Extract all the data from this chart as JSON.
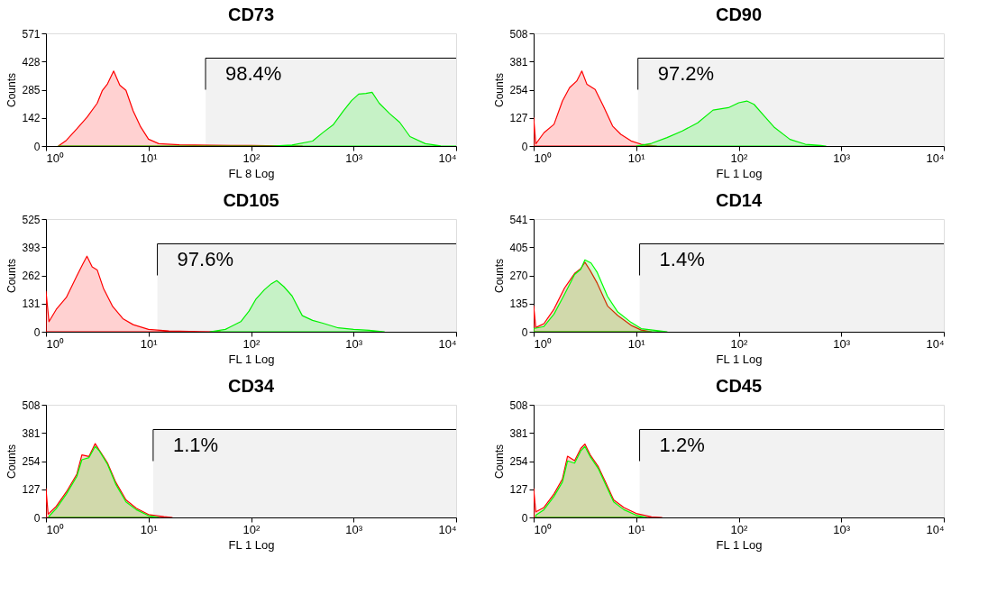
{
  "chart_data": [
    {
      "type": "area",
      "title": "CD73",
      "xlabel": "FL 8 Log",
      "ylabel": "Counts",
      "log": "x",
      "grid": false,
      "marker": "none",
      "xlim": [
        1,
        10000
      ],
      "xticks": [
        {
          "value": 1,
          "label": "10⁰"
        },
        {
          "value": 10,
          "label": "10¹"
        },
        {
          "value": 100,
          "label": "10²"
        },
        {
          "value": 1000,
          "label": "10³"
        },
        {
          "value": 10000,
          "label": "10⁴"
        }
      ],
      "ylim": [
        0,
        571
      ],
      "yticks": [
        0,
        142,
        285,
        428,
        571
      ],
      "bands": [
        {
          "axis": "x",
          "from": 36,
          "to": 10000,
          "label": "98.4%"
        }
      ],
      "series": [
        {
          "color": "#ff0000",
          "x": [
            1.32,
            1.58,
            2.0,
            2.51,
            3.16,
            3.55,
            3.98,
            4.57,
            5.25,
            6.03,
            7.08,
            8.32,
            10,
            12.6,
            20,
            39.8,
            100,
            200,
            316
          ],
          "values": [
            0,
            29,
            87,
            146,
            217,
            282,
            315,
            380,
            308,
            282,
            178,
            100,
            35,
            12,
            6,
            4,
            3,
            1,
            0
          ]
        },
        {
          "color": "#00ff00",
          "x": [
            1.32,
            158,
            251,
            398,
            501,
            631,
            794,
            955,
            1122,
            1318,
            1514,
            1778,
            2239,
            2818,
            3548,
            5012,
            7079,
            10000
          ],
          "values": [
            0,
            0,
            5,
            25,
            68,
            107,
            178,
            230,
            263,
            267,
            272,
            217,
            165,
            120,
            48,
            12,
            1,
            0
          ]
        }
      ]
    },
    {
      "type": "area",
      "title": "CD90",
      "xlabel": "FL 1 Log",
      "ylabel": "Counts",
      "log": "x",
      "grid": false,
      "marker": "none",
      "xlim": [
        1,
        10000
      ],
      "xticks": [
        {
          "value": 1,
          "label": "10⁰"
        },
        {
          "value": 10,
          "label": "10¹"
        },
        {
          "value": 100,
          "label": "10²"
        },
        {
          "value": 1000,
          "label": "10³"
        },
        {
          "value": 10000,
          "label": "10⁴"
        }
      ],
      "ylim": [
        0,
        508
      ],
      "yticks": [
        0,
        127,
        254,
        381,
        508
      ],
      "bands": [
        {
          "axis": "x",
          "from": 10.4,
          "to": 10000,
          "label": "97.2%"
        }
      ],
      "series": [
        {
          "color": "#ff0000",
          "x": [
            1,
            1.05,
            1.26,
            1.58,
            1.91,
            2.24,
            2.63,
            2.95,
            3.31,
            3.98,
            4.79,
            5.89,
            7.08,
            8.91,
            11.2,
            15.8
          ],
          "values": [
            128,
            10,
            60,
            98,
            203,
            263,
            293,
            338,
            278,
            255,
            180,
            90,
            53,
            23,
            8,
            0
          ]
        },
        {
          "color": "#00ff00",
          "x": [
            10,
            14.1,
            20,
            28.2,
            39.8,
            56.2,
            79.4,
            100,
            120,
            141,
            178,
            224,
            316,
            447,
            631,
            708
          ],
          "values": [
            0,
            12,
            38,
            68,
            105,
            162,
            173,
            195,
            203,
            188,
            135,
            83,
            30,
            8,
            3,
            0
          ]
        }
      ]
    },
    {
      "type": "area",
      "title": "CD105",
      "xlabel": "FL 1 Log",
      "ylabel": "Counts",
      "log": "x",
      "grid": false,
      "marker": "none",
      "xlim": [
        1,
        10000
      ],
      "xticks": [
        {
          "value": 1,
          "label": "10⁰"
        },
        {
          "value": 10,
          "label": "10¹"
        },
        {
          "value": 100,
          "label": "10²"
        },
        {
          "value": 1000,
          "label": "10³"
        },
        {
          "value": 10000,
          "label": "10⁴"
        }
      ],
      "ylim": [
        0,
        525
      ],
      "yticks": [
        0,
        131,
        262,
        393,
        525
      ],
      "bands": [
        {
          "axis": "x",
          "from": 12.2,
          "to": 10000,
          "label": "97.6%"
        }
      ],
      "series": [
        {
          "color": "#ff0000",
          "x": [
            1,
            1.07,
            1.26,
            1.58,
            2.0,
            2.29,
            2.51,
            2.82,
            3.16,
            3.63,
            4.47,
            5.62,
            7.08,
            10,
            15.8,
            31.6,
            50.1
          ],
          "values": [
            189,
            47,
            104,
            160,
            260,
            316,
            352,
            302,
            288,
            203,
            118,
            61,
            33,
            11,
            4,
            1,
            0
          ]
        },
        {
          "color": "#00ff00",
          "x": [
            39.8,
            56.2,
            79.4,
            95.5,
            112,
            135,
            158,
            178,
            209,
            251,
            316,
            398,
            501,
            708,
            1000,
            1413,
            1995
          ],
          "values": [
            0,
            11,
            47,
            96,
            153,
            196,
            224,
            238,
            210,
            167,
            75,
            53,
            40,
            18,
            11,
            7,
            0
          ]
        }
      ]
    },
    {
      "type": "area",
      "title": "CD14",
      "xlabel": "FL 1 Log",
      "ylabel": "Counts",
      "log": "x",
      "grid": false,
      "marker": "none",
      "xlim": [
        1,
        10000
      ],
      "xticks": [
        {
          "value": 1,
          "label": "10⁰"
        },
        {
          "value": 10,
          "label": "10¹"
        },
        {
          "value": 100,
          "label": "10²"
        },
        {
          "value": 1000,
          "label": "10³"
        },
        {
          "value": 10000,
          "label": "10⁴"
        }
      ],
      "ylim": [
        0,
        541
      ],
      "yticks": [
        0,
        135,
        270,
        405,
        541
      ],
      "bands": [
        {
          "axis": "x",
          "from": 10.8,
          "to": 10000,
          "label": "1.4%"
        }
      ],
      "series": [
        {
          "color": "#ff0000",
          "x": [
            1,
            1.05,
            1.26,
            1.58,
            2.0,
            2.51,
            2.88,
            3.16,
            3.55,
            4.17,
            5.25,
            6.61,
            8.91,
            11.2,
            14.1
          ],
          "values": [
            124,
            20,
            39,
            109,
            210,
            280,
            303,
            334,
            295,
            233,
            124,
            78,
            31,
            8,
            0
          ]
        },
        {
          "color": "#00ff00",
          "x": [
            1,
            1.26,
            1.58,
            2.0,
            2.51,
            2.88,
            3.16,
            3.63,
            4.17,
            5.25,
            6.61,
            8.91,
            11.2,
            17.8,
            20
          ],
          "values": [
            15,
            25,
            85,
            180,
            275,
            300,
            345,
            330,
            285,
            170,
            95,
            45,
            15,
            3,
            0
          ]
        }
      ]
    },
    {
      "type": "area",
      "title": "CD34",
      "xlabel": "FL 1 Log",
      "ylabel": "Counts",
      "log": "x",
      "grid": false,
      "marker": "none",
      "xlim": [
        1,
        10000
      ],
      "xticks": [
        {
          "value": 1,
          "label": "10⁰"
        },
        {
          "value": 10,
          "label": "10¹"
        },
        {
          "value": 100,
          "label": "10²"
        },
        {
          "value": 1000,
          "label": "10³"
        },
        {
          "value": 10000,
          "label": "10⁴"
        }
      ],
      "ylim": [
        0,
        508
      ],
      "yticks": [
        0,
        127,
        254,
        381,
        508
      ],
      "bands": [
        {
          "axis": "x",
          "from": 11.1,
          "to": 10000,
          "label": "1.1%"
        }
      ],
      "series": [
        {
          "color": "#ff0000",
          "x": [
            1,
            1.05,
            1.26,
            1.58,
            2.0,
            2.24,
            2.63,
            3.02,
            3.31,
            3.98,
            4.79,
            6.03,
            7.59,
            10,
            14.1,
            17
          ],
          "values": [
            130,
            15,
            50,
            115,
            195,
            282,
            275,
            333,
            304,
            246,
            159,
            79,
            42,
            13,
            4,
            0
          ]
        },
        {
          "color": "#00ff00",
          "x": [
            1.07,
            1.26,
            1.58,
            2.0,
            2.24,
            2.63,
            3.02,
            3.31,
            3.98,
            4.79,
            6.03,
            7.59,
            10,
            12.6
          ],
          "values": [
            5,
            40,
            105,
            185,
            260,
            270,
            320,
            300,
            240,
            150,
            70,
            35,
            8,
            0
          ]
        }
      ]
    },
    {
      "type": "area",
      "title": "CD45",
      "xlabel": "FL 1 Log",
      "ylabel": "Counts",
      "log": "x",
      "grid": false,
      "marker": "none",
      "xlim": [
        1,
        10000
      ],
      "xticks": [
        {
          "value": 1,
          "label": "10⁰"
        },
        {
          "value": 10,
          "label": "10¹"
        },
        {
          "value": 100,
          "label": "10²"
        },
        {
          "value": 1000,
          "label": "10³"
        },
        {
          "value": 10000,
          "label": "10⁴"
        }
      ],
      "ylim": [
        0,
        508
      ],
      "yticks": [
        0,
        127,
        254,
        381,
        508
      ],
      "bands": [
        {
          "axis": "x",
          "from": 10.8,
          "to": 10000,
          "label": "1.2%"
        }
      ],
      "series": [
        {
          "color": "#ff0000",
          "x": [
            1,
            1.05,
            1.26,
            1.58,
            1.91,
            2.14,
            2.51,
            2.88,
            3.16,
            3.55,
            4.27,
            5.01,
            6.03,
            7.59,
            10,
            14.1,
            17.8
          ],
          "values": [
            130,
            25,
            45,
            106,
            174,
            276,
            256,
            311,
            331,
            283,
            229,
            161,
            79,
            45,
            18,
            3,
            0
          ]
        },
        {
          "color": "#00ff00",
          "x": [
            1.05,
            1.26,
            1.58,
            1.91,
            2.14,
            2.51,
            2.88,
            3.16,
            3.55,
            4.27,
            5.01,
            6.03,
            7.59,
            10,
            12.6
          ],
          "values": [
            10,
            35,
            95,
            160,
            255,
            245,
            300,
            320,
            275,
            220,
            150,
            70,
            35,
            10,
            0
          ]
        }
      ]
    }
  ]
}
